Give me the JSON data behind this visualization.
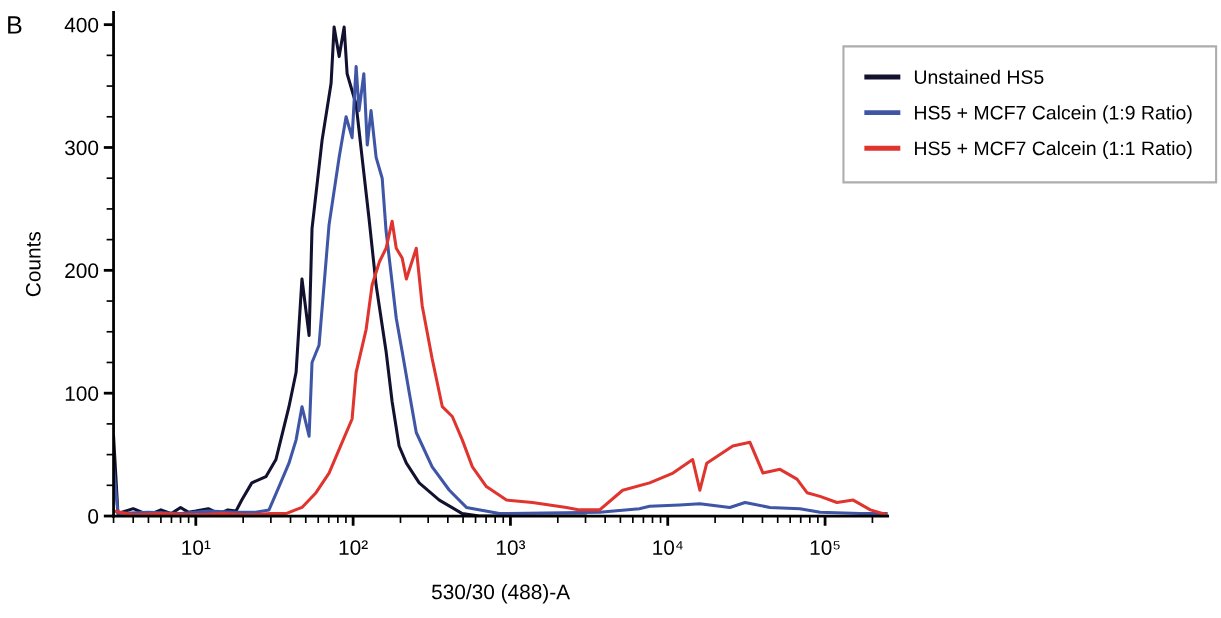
{
  "chart_data": {
    "type": "line",
    "xlabel": "530/30 (488)-A",
    "ylabel": "Counts",
    "annotations": [
      "B"
    ],
    "log": "x",
    "xlim": [
      3,
      250000
    ],
    "ylim": [
      0,
      410
    ],
    "xticks": [
      {
        "value": 10,
        "label": "10¹"
      },
      {
        "value": 100,
        "label": "10²"
      },
      {
        "value": 1000,
        "label": "10³"
      },
      {
        "value": 10000,
        "label": "10⁴"
      },
      {
        "value": 100000,
        "label": "10⁵"
      }
    ],
    "yticks": [
      0,
      100,
      200,
      300,
      400
    ],
    "grid": false,
    "legend": "top right",
    "marker": "none",
    "line_style": "solid",
    "series": [
      {
        "name": "Unstained HS5",
        "color": "#121230",
        "x": [
          3,
          3.2,
          4,
          5,
          6,
          7,
          8,
          9,
          10,
          12,
          14,
          16,
          18,
          19.6,
          22.7,
          27.9,
          32.3,
          39.1,
          43.4,
          47.3,
          52.5,
          54.8,
          63.5,
          72.4,
          75.7,
          81.5,
          87.7,
          91.6,
          104.5,
          114,
          126,
          140,
          162,
          177,
          196,
          218,
          263,
          353,
          494,
          635,
          1000,
          3000
        ],
        "values": [
          65,
          2,
          6,
          1,
          5,
          2,
          7,
          3,
          4,
          6,
          2,
          5,
          4,
          13,
          27,
          32,
          46,
          89,
          117,
          193,
          147,
          234,
          306,
          352,
          398,
          374,
          398,
          360,
          335,
          292,
          243,
          188,
          134,
          93,
          57,
          43,
          27,
          13,
          2,
          0,
          0,
          0
        ]
      },
      {
        "name": "HS5 + MCF7 Calcein (1:9 Ratio)",
        "color": "#3f55a6",
        "x": [
          3,
          3.2,
          5,
          8,
          12,
          18,
          24,
          29.2,
          33.8,
          39.1,
          43.4,
          47.3,
          52.5,
          54.8,
          60.7,
          70.3,
          81.5,
          90.2,
          98.5,
          104.5,
          109,
          117,
          123,
          130,
          140,
          153,
          162,
          188,
          205,
          227,
          252,
          318,
          409,
          525,
          851,
          3690,
          6600,
          7670,
          11900,
          16000,
          24800,
          31000,
          44600,
          69200,
          93000,
          167000,
          250000
        ],
        "values": [
          40,
          2,
          3,
          2,
          4,
          3,
          3,
          5,
          24,
          43,
          62,
          89,
          65,
          125,
          139,
          237,
          292,
          325,
          308,
          366,
          330,
          360,
          302,
          330,
          292,
          275,
          232,
          161,
          134,
          101,
          68,
          40,
          21,
          7,
          2,
          3,
          6,
          8,
          9,
          10,
          7,
          11,
          7,
          6,
          3,
          2,
          2
        ]
      },
      {
        "name": "HS5 + MCF7 Calcein (1:1 Ratio)",
        "color": "#e0352f",
        "x": [
          3,
          4,
          6,
          10,
          15,
          22,
          30,
          37.4,
          47.3,
          58.1,
          70.3,
          85.1,
          98.5,
          104.5,
          121,
          132,
          147,
          162,
          177,
          188,
          205,
          218,
          252,
          275,
          318,
          369,
          427,
          494,
          573,
          703,
          944,
          1380,
          2270,
          2750,
          3690,
          5170,
          7670,
          10800,
          14400,
          16000,
          17700,
          25900,
          33300,
          40300,
          51700,
          66300,
          76800,
          92900,
          119000,
          151000,
          194000,
          248000
        ],
        "values": [
          4,
          1,
          2,
          1,
          2,
          1,
          2,
          2,
          7,
          19,
          35,
          60,
          79,
          117,
          152,
          188,
          207,
          218,
          240,
          218,
          210,
          193,
          218,
          171,
          128,
          89,
          81,
          62,
          40,
          24,
          13,
          11,
          7,
          5,
          5,
          21,
          27,
          35,
          46,
          21,
          43,
          57,
          60,
          35,
          38,
          30,
          19,
          16,
          11,
          13,
          5,
          1
        ]
      }
    ]
  }
}
